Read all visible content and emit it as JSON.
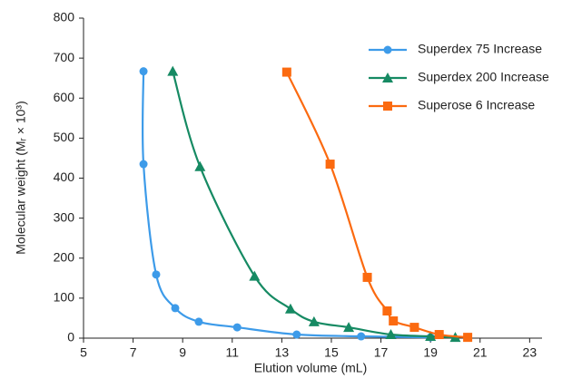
{
  "chart_data": {
    "type": "line",
    "xlabel": "Elution volume (mL)",
    "ylabel": "Molecular weight (Mᵣ × 10³)",
    "xlim": [
      5,
      23.5
    ],
    "xticks": [
      5,
      7,
      9,
      11,
      13,
      15,
      17,
      19,
      21,
      23
    ],
    "ylim": [
      0,
      800
    ],
    "yticks": [
      0,
      100,
      200,
      300,
      400,
      500,
      600,
      700,
      800
    ],
    "grid": false,
    "legend": "upper right",
    "series": [
      {
        "name": "Superdex 75 Increase",
        "color": "#3d9be9",
        "marker": "circle",
        "x": [
          7.42,
          7.42,
          7.93,
          8.7,
          9.65,
          11.2,
          13.6,
          16.2,
          19.0
        ],
        "values": [
          667,
          435,
          159,
          75,
          41,
          27,
          9,
          4.5,
          2
        ]
      },
      {
        "name": "Superdex 200 Increase",
        "color": "#168a63",
        "marker": "triangle",
        "x": [
          8.6,
          9.7,
          11.9,
          13.35,
          14.3,
          15.7,
          17.4,
          19.0,
          20.0
        ],
        "values": [
          667,
          429,
          155,
          73,
          41,
          27,
          9,
          4.5,
          2
        ]
      },
      {
        "name": "Superose 6 Increase",
        "color": "#fb6a10",
        "marker": "square",
        "x": [
          13.2,
          14.95,
          16.45,
          17.25,
          17.5,
          18.35,
          19.35,
          20.5
        ],
        "values": [
          665,
          435,
          152,
          68,
          43,
          27,
          9,
          2
        ]
      }
    ]
  }
}
